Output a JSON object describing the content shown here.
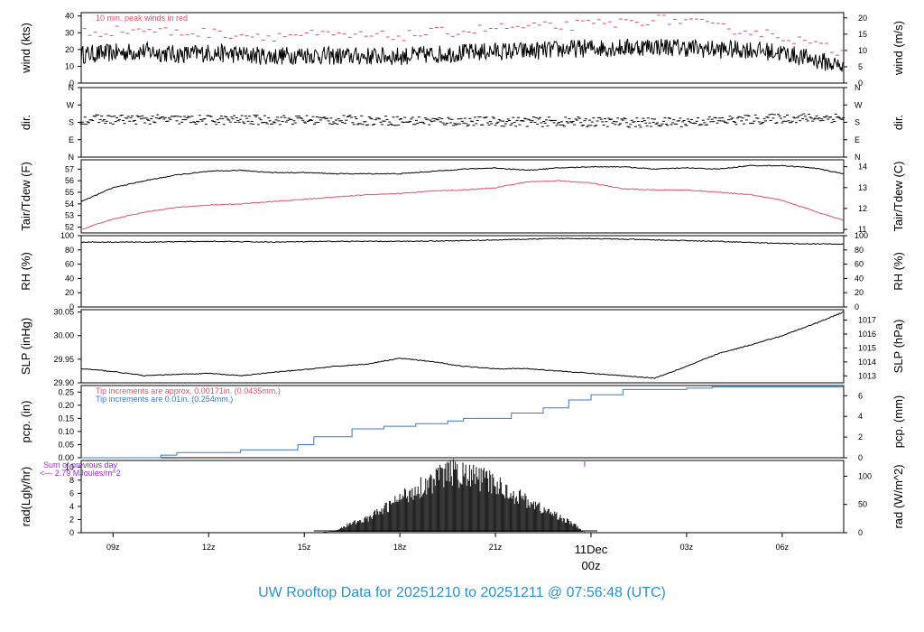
{
  "footer": {
    "title": "UW Rooftop Data for 20251210  to  20251211 @ 07:56:48  (UTC)"
  },
  "colors": {
    "red": "#e0506a",
    "blue": "#3b78c8",
    "purple": "#a020f0",
    "black": "#000000",
    "footer": "#2a92d0"
  },
  "time_axis": {
    "ticks": [
      "09z",
      "12z",
      "15z",
      "18z",
      "21z",
      "00z",
      "03z",
      "06z"
    ],
    "tick_hours": [
      9,
      12,
      15,
      18,
      21,
      24,
      27,
      30
    ],
    "day_marker": {
      "date": "11Dec",
      "label": "00z",
      "hour": 24
    },
    "start_hour": 8.0,
    "end_hour": 31.93
  },
  "chart_data": [
    {
      "type": "line",
      "id": "wind",
      "ylabel": "wind (kts)",
      "ylabel_right": "wind (m/s)",
      "ylim": [
        0,
        42
      ],
      "ylim_right": [
        0,
        21.6
      ],
      "yticks": [
        0,
        10,
        20,
        30,
        40
      ],
      "yticks_right": [
        0,
        5,
        10,
        15,
        20
      ],
      "annotation": "10 min. peak winds in red",
      "series": [
        {
          "name": "",
          "color": "#000000",
          "style": "line",
          "x": [
            8,
            9,
            10,
            11,
            12,
            13,
            14,
            15,
            16,
            17,
            18,
            19,
            20,
            21,
            22,
            23,
            24,
            25,
            26,
            27,
            28,
            29,
            30,
            31,
            31.9
          ],
          "y": [
            17,
            18,
            19,
            17,
            18,
            17,
            16,
            17,
            16,
            16,
            16,
            17,
            18,
            19,
            19,
            20,
            21,
            21,
            22,
            21,
            20,
            20,
            18,
            14,
            10
          ]
        },
        {
          "name": "",
          "color": "#e0506a",
          "style": "dash",
          "x": [
            8,
            9,
            10,
            11,
            12,
            13,
            14,
            15,
            16,
            17,
            18,
            19,
            20,
            21,
            22,
            23,
            24,
            25,
            26,
            27,
            28,
            29,
            30,
            31,
            31.9
          ],
          "y": [
            30,
            31,
            32,
            30,
            30,
            29,
            28,
            29,
            28,
            28,
            28,
            30,
            31,
            33,
            33,
            34,
            35,
            36,
            38,
            37,
            33,
            31,
            28,
            23,
            18
          ]
        }
      ]
    },
    {
      "type": "scatter",
      "id": "dir",
      "ylabel": "dir.",
      "ylabel_right": "dir.",
      "ylim": [
        0,
        360
      ],
      "yticks": [
        0,
        90,
        180,
        270,
        360
      ],
      "ytick_labels": [
        "N",
        "E",
        "S",
        "W",
        "N"
      ],
      "series": [
        {
          "name": "",
          "color": "#000000",
          "x": [
            8,
            10,
            12,
            14,
            16,
            18,
            20,
            22,
            24,
            26,
            28,
            30,
            31.9
          ],
          "y": [
            195,
            195,
            192,
            193,
            192,
            188,
            185,
            183,
            182,
            178,
            188,
            200,
            205
          ]
        }
      ]
    },
    {
      "type": "line",
      "id": "temp",
      "ylabel": "Tair/Tdew (F)",
      "ylabel_right": "Tair/Tdew (C)",
      "ylim": [
        51.5,
        57.8
      ],
      "ylim_right": [
        10.83,
        14.33
      ],
      "yticks": [
        52,
        53,
        54,
        55,
        56,
        57
      ],
      "yticks_right": [
        11,
        12,
        13,
        14
      ],
      "series": [
        {
          "name": "",
          "color": "#000000",
          "x": [
            8,
            9,
            10,
            11,
            12,
            13,
            14,
            15,
            16,
            17,
            18,
            19,
            20,
            21,
            22,
            23,
            24,
            25,
            26,
            27,
            28,
            29,
            30,
            31,
            31.9
          ],
          "y": [
            54.2,
            55.4,
            56.0,
            56.5,
            56.8,
            56.9,
            56.7,
            56.7,
            56.6,
            56.6,
            56.6,
            56.8,
            57.0,
            57.1,
            56.9,
            57.1,
            57.2,
            57.2,
            57.0,
            57.1,
            57.0,
            57.3,
            57.3,
            57.1,
            56.6
          ]
        },
        {
          "name": "",
          "color": "#e0506a",
          "x": [
            8,
            9,
            10,
            11,
            12,
            13,
            14,
            15,
            16,
            17,
            18,
            19,
            20,
            21,
            22,
            23,
            24,
            25,
            26,
            27,
            28,
            29,
            30,
            31,
            31.9
          ],
          "y": [
            51.8,
            52.7,
            53.3,
            53.7,
            53.9,
            54.0,
            54.2,
            54.4,
            54.6,
            54.8,
            54.9,
            55.1,
            55.2,
            55.4,
            55.9,
            56.0,
            55.8,
            55.3,
            55.2,
            55.2,
            55.0,
            54.8,
            54.3,
            53.4,
            52.6
          ]
        }
      ]
    },
    {
      "type": "line",
      "id": "rh",
      "ylabel": "RH (%)",
      "ylabel_right": "RH (%)",
      "ylim": [
        0,
        100
      ],
      "yticks": [
        0,
        20,
        40,
        60,
        80,
        100
      ],
      "series": [
        {
          "name": "",
          "color": "#000000",
          "x": [
            8,
            10,
            12,
            14,
            16,
            18,
            20,
            22,
            23,
            24,
            26,
            28,
            30,
            31.9
          ],
          "y": [
            91,
            91,
            92,
            91,
            92,
            92,
            93,
            95,
            96,
            96,
            94,
            92,
            89,
            88
          ]
        }
      ]
    },
    {
      "type": "line",
      "id": "slp",
      "ylabel": "SLP (inHg)",
      "ylabel_right": "SLP (hPa)",
      "ylim": [
        29.9,
        30.055
      ],
      "ylim_right": [
        1012.5,
        1017.75
      ],
      "yticks": [
        29.9,
        29.95,
        30.0,
        30.05
      ],
      "ytick_labels": [
        "29.90",
        "29.95",
        "30.00",
        "30.05"
      ],
      "yticks_right": [
        1013,
        1014,
        1015,
        1016,
        1017
      ],
      "series": [
        {
          "name": "",
          "color": "#000000",
          "x": [
            8,
            9,
            10,
            11,
            12,
            13,
            14,
            15,
            16,
            17,
            18,
            19,
            20,
            21,
            22,
            23,
            24,
            25,
            26,
            27,
            28,
            29,
            30,
            31,
            31.93
          ],
          "y": [
            29.93,
            29.924,
            29.915,
            29.918,
            29.92,
            29.915,
            29.922,
            29.928,
            29.935,
            29.94,
            29.952,
            29.945,
            29.935,
            29.93,
            29.93,
            29.925,
            29.92,
            29.915,
            29.91,
            29.935,
            29.962,
            29.98,
            30.0,
            30.025,
            30.05
          ]
        }
      ]
    },
    {
      "type": "line",
      "id": "pcp",
      "ylabel": "pcp. (in)",
      "ylabel_right": "pcp. (mm)",
      "ylim": [
        0,
        0.275
      ],
      "ylim_right": [
        0,
        6.985
      ],
      "yticks": [
        0,
        0.05,
        0.1,
        0.15,
        0.2,
        0.25
      ],
      "ytick_labels": [
        "0.00",
        "0.05",
        "0.10",
        "0.15",
        "0.20",
        "0.25"
      ],
      "yticks_right": [
        0,
        2,
        4,
        6
      ],
      "annotations": [
        {
          "text": "Tip increments are approx. 0.00171in. (0.0435mm.)",
          "color": "#e0506a"
        },
        {
          "text": "Tip increments are 0.01in. (0.254mm.)",
          "color": "#3b78c8"
        }
      ],
      "series": [
        {
          "name": "",
          "color": "#3b78c8",
          "style": "step",
          "x": [
            8,
            10.5,
            11,
            13,
            14.8,
            15.3,
            16.5,
            17.5,
            18.5,
            19.5,
            20,
            21.5,
            22.5,
            23.3,
            24,
            25,
            26.7,
            27,
            27.8,
            31.93
          ],
          "y": [
            0,
            0.01,
            0.02,
            0.03,
            0.05,
            0.08,
            0.11,
            0.12,
            0.13,
            0.14,
            0.15,
            0.17,
            0.19,
            0.22,
            0.24,
            0.26,
            0.26,
            0.265,
            0.27,
            0.27
          ]
        }
      ]
    },
    {
      "type": "area",
      "id": "rad",
      "ylabel": "rad(Lgly/hr)",
      "ylabel_right": "rad (W/m^2)",
      "ylim": [
        0,
        11
      ],
      "ylim_right": [
        0,
        127.9
      ],
      "yticks": [
        0,
        2,
        4,
        6,
        8,
        10
      ],
      "yticks_right": [
        0,
        50,
        100
      ],
      "annotations": [
        {
          "text": "Sum of previous day",
          "color": "#a020f0"
        },
        {
          "text": "<--- 2.79 MJoules/m^2",
          "color": "#a020f0"
        }
      ],
      "series": [
        {
          "name": "",
          "color": "#000000",
          "x": [
            15.6,
            16,
            16.5,
            17,
            17.5,
            18,
            18.5,
            19,
            19.5,
            20,
            20.5,
            21,
            21.5,
            22,
            22.5,
            23,
            23.5,
            23.8
          ],
          "y": [
            0,
            0.4,
            1.5,
            2.3,
            3.8,
            5.5,
            7.0,
            8.2,
            9.8,
            9.3,
            8.8,
            7.8,
            6.3,
            5.2,
            3.7,
            2.6,
            1.2,
            0
          ]
        }
      ]
    }
  ]
}
